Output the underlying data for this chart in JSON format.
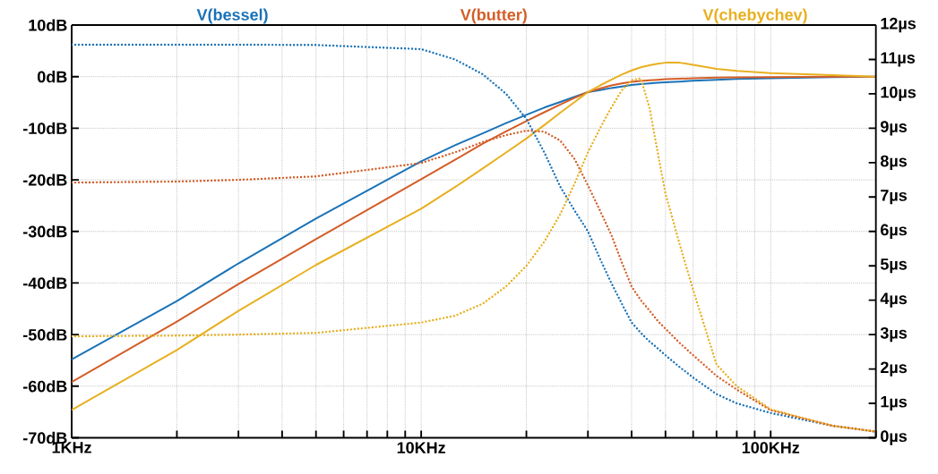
{
  "chart_data": {
    "type": "line",
    "log": "x",
    "grid": true,
    "legend": "top",
    "x": [
      1,
      2,
      3,
      5,
      10,
      12.5,
      15,
      17.5,
      20,
      22.5,
      25,
      27.5,
      30,
      32.5,
      35,
      37.5,
      40,
      42.5,
      45,
      47.5,
      50,
      55,
      60,
      70,
      80,
      100,
      150,
      200
    ],
    "xlim": [
      1,
      200
    ],
    "xticks": [
      {
        "value": 1,
        "label": "1KHz"
      },
      {
        "value": 2,
        "label": null
      },
      {
        "value": 3,
        "label": null
      },
      {
        "value": 4,
        "label": null
      },
      {
        "value": 5,
        "label": null
      },
      {
        "value": 6,
        "label": null
      },
      {
        "value": 7,
        "label": null
      },
      {
        "value": 8,
        "label": null
      },
      {
        "value": 9,
        "label": null
      },
      {
        "value": 10,
        "label": "10KHz"
      },
      {
        "value": 20,
        "label": null
      },
      {
        "value": 30,
        "label": null
      },
      {
        "value": 40,
        "label": null
      },
      {
        "value": 50,
        "label": null
      },
      {
        "value": 60,
        "label": null
      },
      {
        "value": 70,
        "label": null
      },
      {
        "value": 80,
        "label": null
      },
      {
        "value": 90,
        "label": null
      },
      {
        "value": 100,
        "label": "100KHz"
      },
      {
        "value": 200,
        "label": null
      }
    ],
    "ylim": [
      -70,
      10
    ],
    "yticks": [
      {
        "value": -70,
        "label": "-70dB"
      },
      {
        "value": -60,
        "label": "-60dB"
      },
      {
        "value": -50,
        "label": "-50dB"
      },
      {
        "value": -40,
        "label": "-40dB"
      },
      {
        "value": -30,
        "label": "-30dB"
      },
      {
        "value": -20,
        "label": "-20dB"
      },
      {
        "value": -10,
        "label": "-10dB"
      },
      {
        "value": 0,
        "label": "0dB"
      },
      {
        "value": 10,
        "label": "10dB"
      }
    ],
    "y2lim": [
      0,
      12
    ],
    "y2ticks": [
      {
        "value": 0,
        "label": "0µs"
      },
      {
        "value": 1,
        "label": "1µs"
      },
      {
        "value": 2,
        "label": "2µs"
      },
      {
        "value": 3,
        "label": "3µs"
      },
      {
        "value": 4,
        "label": "4µs"
      },
      {
        "value": 5,
        "label": "5µs"
      },
      {
        "value": 6,
        "label": "6µs"
      },
      {
        "value": 7,
        "label": "7µs"
      },
      {
        "value": 8,
        "label": "8µs"
      },
      {
        "value": 9,
        "label": "9µs"
      },
      {
        "value": 10,
        "label": "10µs"
      },
      {
        "value": 11,
        "label": "11µs"
      },
      {
        "value": 12,
        "label": "12µs"
      }
    ],
    "series": [
      {
        "name": "V(bessel)",
        "color": "#1a73b8",
        "line_style": "solid",
        "values": [
          -54.8,
          -43.5,
          -36.2,
          -27.5,
          -16.4,
          -13.3,
          -11.0,
          -9.0,
          -7.4,
          -6.0,
          -4.9,
          -3.9,
          -3.0,
          -2.6,
          -2.2,
          -1.9,
          -1.6,
          -1.45,
          -1.3,
          -1.2,
          -1.1,
          -0.95,
          -0.8,
          -0.6,
          -0.45,
          -0.3,
          -0.1,
          0
        ]
      },
      {
        "name": "V(butter)",
        "color": "#d45d27",
        "line_style": "solid",
        "values": [
          -59.2,
          -47.5,
          -40.2,
          -31.5,
          -19.9,
          -16.1,
          -13.0,
          -10.6,
          -8.6,
          -6.9,
          -5.4,
          -4.1,
          -3.0,
          -2.3,
          -1.7,
          -1.3,
          -1.0,
          -0.85,
          -0.7,
          -0.6,
          -0.5,
          -0.4,
          -0.3,
          -0.2,
          -0.15,
          -0.1,
          0,
          0
        ]
      },
      {
        "name": "V(chebychev)",
        "color": "#e8b020",
        "line_style": "solid",
        "values": [
          -64.6,
          -53.0,
          -45.4,
          -36.5,
          -25.6,
          -21.4,
          -17.8,
          -14.7,
          -12.0,
          -9.4,
          -7.0,
          -4.9,
          -3.0,
          -1.7,
          -0.6,
          0.4,
          1.2,
          1.8,
          2.2,
          2.5,
          2.7,
          2.7,
          2.3,
          1.5,
          1.1,
          0.7,
          0.3,
          0
        ]
      },
      {
        "color": "#1a73b8",
        "line_style": "dotted",
        "axis": "y2",
        "values": [
          11.43,
          11.43,
          11.43,
          11.42,
          11.3,
          11.0,
          10.57,
          10.0,
          9.27,
          8.3,
          7.3,
          6.6,
          6.0,
          5.2,
          4.5,
          3.9,
          3.35,
          3.05,
          2.8,
          2.6,
          2.4,
          2.05,
          1.75,
          1.27,
          1.0,
          0.72,
          0.35,
          0.18
        ]
      },
      {
        "color": "#d45d27",
        "line_style": "dotted",
        "axis": "y2",
        "values": [
          7.42,
          7.45,
          7.5,
          7.6,
          7.99,
          8.3,
          8.6,
          8.8,
          8.93,
          8.9,
          8.64,
          8.1,
          7.34,
          6.6,
          5.9,
          5.1,
          4.4,
          4.0,
          3.7,
          3.4,
          3.17,
          2.75,
          2.4,
          1.8,
          1.4,
          0.8,
          0.35,
          0.18
        ]
      },
      {
        "color": "#e8b020",
        "line_style": "dotted",
        "axis": "y2",
        "values": [
          2.95,
          2.97,
          3.0,
          3.05,
          3.35,
          3.55,
          3.9,
          4.4,
          5.0,
          5.7,
          6.5,
          7.4,
          8.3,
          9.0,
          9.6,
          10.1,
          10.4,
          10.45,
          9.6,
          8.3,
          7.1,
          5.6,
          4.3,
          2.13,
          1.5,
          0.83,
          0.35,
          0.18
        ]
      }
    ]
  }
}
